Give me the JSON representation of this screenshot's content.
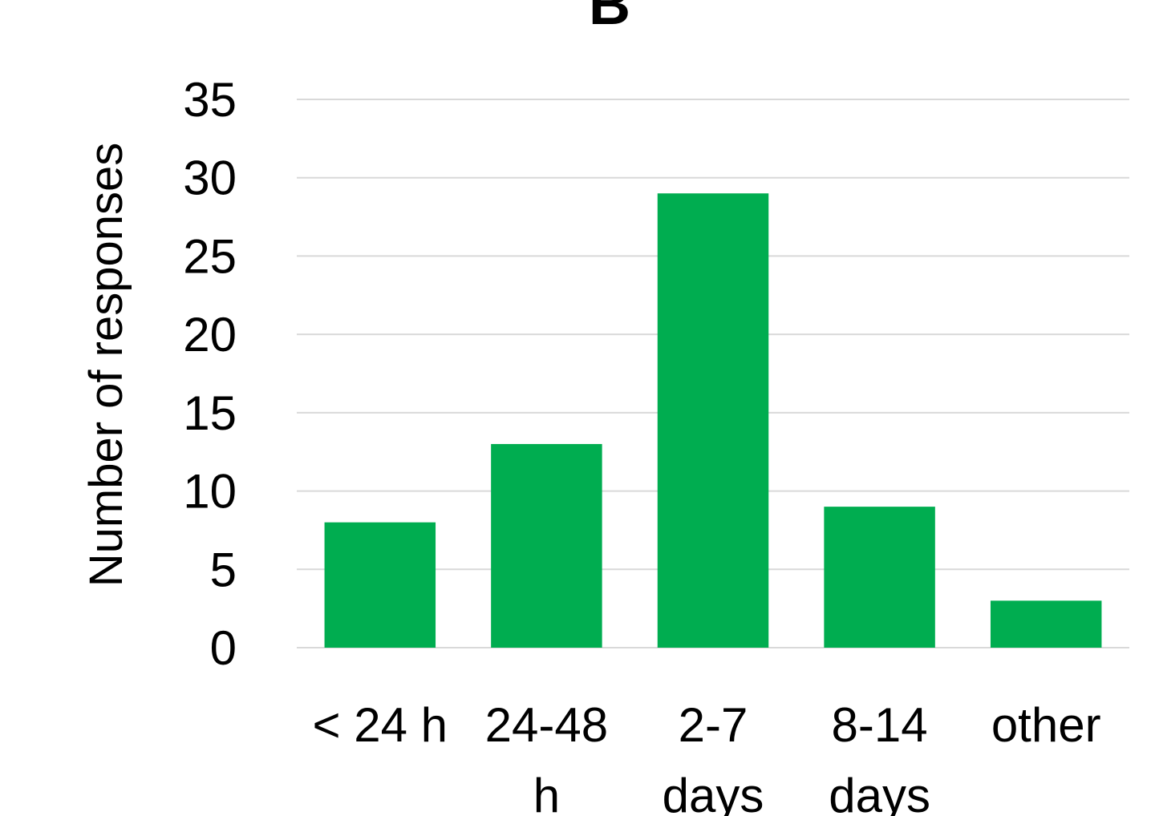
{
  "chart_data": {
    "type": "bar",
    "title": "B",
    "xlabel": "",
    "ylabel": "Number of responses",
    "categories": [
      [
        "< 24 h"
      ],
      [
        "24-48",
        "h"
      ],
      [
        "2-7",
        "days"
      ],
      [
        "8-14",
        "days"
      ],
      [
        "other"
      ]
    ],
    "values": [
      8,
      13,
      29,
      9,
      3
    ],
    "ylim": [
      0,
      35
    ],
    "yticks": [
      0,
      5,
      10,
      15,
      20,
      25,
      30,
      35
    ],
    "grid": true,
    "legend": "none",
    "bar_color": "#00ad50",
    "grid_color": "#d9d9d9"
  }
}
